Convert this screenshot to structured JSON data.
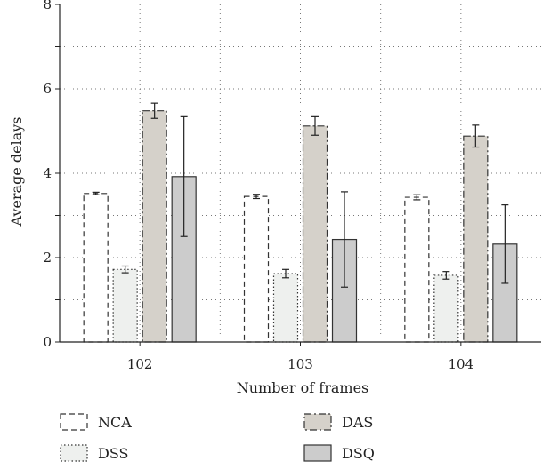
{
  "chart_data": {
    "type": "bar",
    "xlabel": "Number of frames",
    "ylabel": "Average delays",
    "categories": [
      "102",
      "103",
      "104"
    ],
    "ylim": [
      0,
      8
    ],
    "yticks": [
      "0",
      "2",
      "4",
      "6",
      "8"
    ],
    "grid": true,
    "grid_style": "dotted",
    "legend_position": "bottom",
    "series": [
      {
        "name": "NCA",
        "values": [
          3.52,
          3.45,
          3.43
        ],
        "errors": [
          0.03,
          0.05,
          0.06
        ],
        "fill": "#ffffff",
        "stroke": "dashed"
      },
      {
        "name": "DSS",
        "values": [
          1.72,
          1.62,
          1.58
        ],
        "errors": [
          0.08,
          0.1,
          0.09
        ],
        "fill": "#eef0ee",
        "stroke": "dotted"
      },
      {
        "name": "DAS",
        "values": [
          5.48,
          5.12,
          4.88
        ],
        "errors": [
          0.18,
          0.22,
          0.26
        ],
        "fill": "#d5d1ca",
        "stroke": "dashdot"
      },
      {
        "name": "DSQ",
        "values": [
          3.92,
          2.43,
          2.32
        ],
        "errors": [
          1.42,
          1.13,
          0.93
        ],
        "fill": "#cccccc",
        "stroke": "solid"
      }
    ]
  }
}
